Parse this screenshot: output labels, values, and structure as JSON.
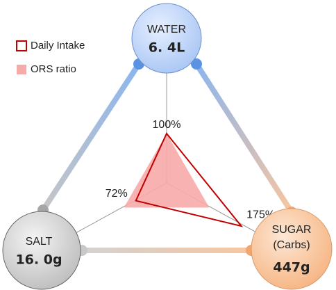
{
  "chart_data": {
    "type": "radar",
    "axes": [
      {
        "label": [
          "WATER"
        ],
        "amount": "6. 4L"
      },
      {
        "label": [
          "SUGAR",
          "(Carbs)"
        ],
        "amount": "447g"
      },
      {
        "label": [
          "SALT"
        ],
        "amount": "16. 0g"
      }
    ],
    "rlim": [
      0,
      200
    ],
    "series": [
      {
        "name": "Daily Intake",
        "color": "#c00000",
        "values": [
          100,
          175,
          72
        ],
        "value_labels": [
          "100%",
          "175%",
          "72%"
        ]
      },
      {
        "name": "ORS ratio",
        "color": "#f7aaaa",
        "values": [
          100,
          100,
          100
        ]
      }
    ]
  }
}
